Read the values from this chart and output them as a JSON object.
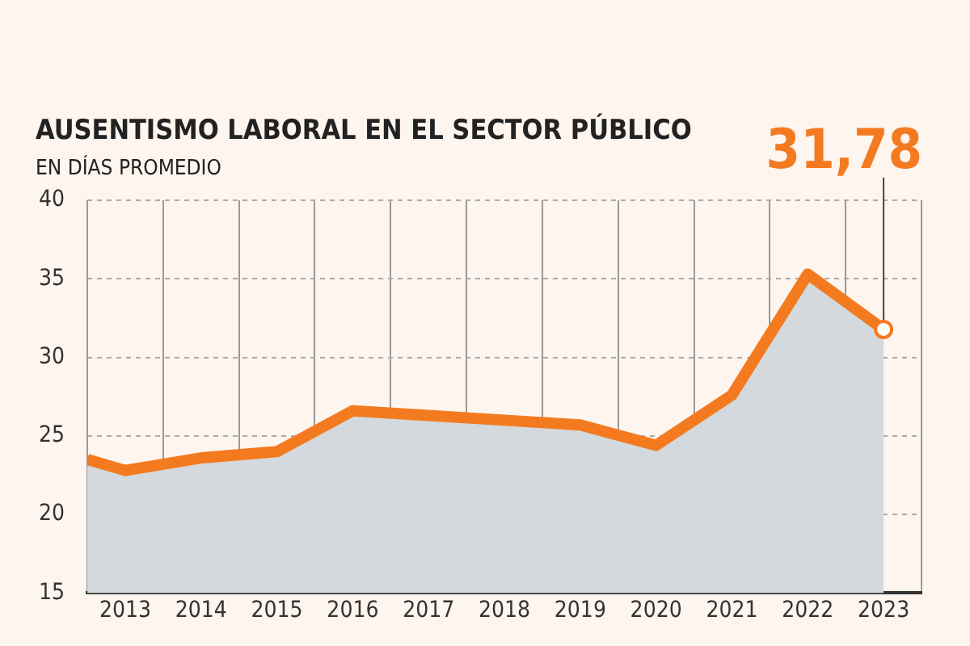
{
  "chart_data": {
    "type": "area",
    "title": "AUSENTISMO LABORAL EN EL SECTOR PÚBLICO",
    "subtitle": "EN DÍAS PROMEDIO",
    "x": [
      2012.5,
      2013,
      2014,
      2015,
      2016,
      2017,
      2018,
      2019,
      2020,
      2021,
      2022,
      2023
    ],
    "series": [
      {
        "color": "#f47a20",
        "values": [
          23.5,
          22.8,
          23.6,
          24.0,
          26.6,
          26.3,
          26.0,
          25.7,
          24.4,
          27.6,
          35.3,
          31.78
        ]
      }
    ],
    "xlim": [
      2012.5,
      2023.5
    ],
    "xticks": [
      {
        "value": 2012.5,
        "label": null
      },
      2013,
      {
        "value": 2013.5,
        "label": null
      },
      2014,
      {
        "value": 2014.5,
        "label": null
      },
      2015,
      {
        "value": 2015.5,
        "label": null
      },
      2016,
      {
        "value": 2016.5,
        "label": null
      },
      2017,
      {
        "value": 2017.5,
        "label": null
      },
      2018,
      {
        "value": 2018.5,
        "label": null
      },
      2019,
      {
        "value": 2019.5,
        "label": null
      },
      2020,
      {
        "value": 2020.5,
        "label": null
      },
      2021,
      {
        "value": 2021.5,
        "label": null
      },
      2022,
      {
        "value": 2022.5,
        "label": null
      },
      2023,
      {
        "value": 2023.5,
        "label": null
      }
    ],
    "ylim": [
      15,
      40
    ],
    "yticks": [
      15,
      20,
      25,
      30,
      35,
      40
    ],
    "grid": true,
    "legend": false,
    "marker": "none",
    "line_style": "solid",
    "annotations": [
      {
        "text": "31,78",
        "x": 2023,
        "y": 31.78
      }
    ]
  }
}
